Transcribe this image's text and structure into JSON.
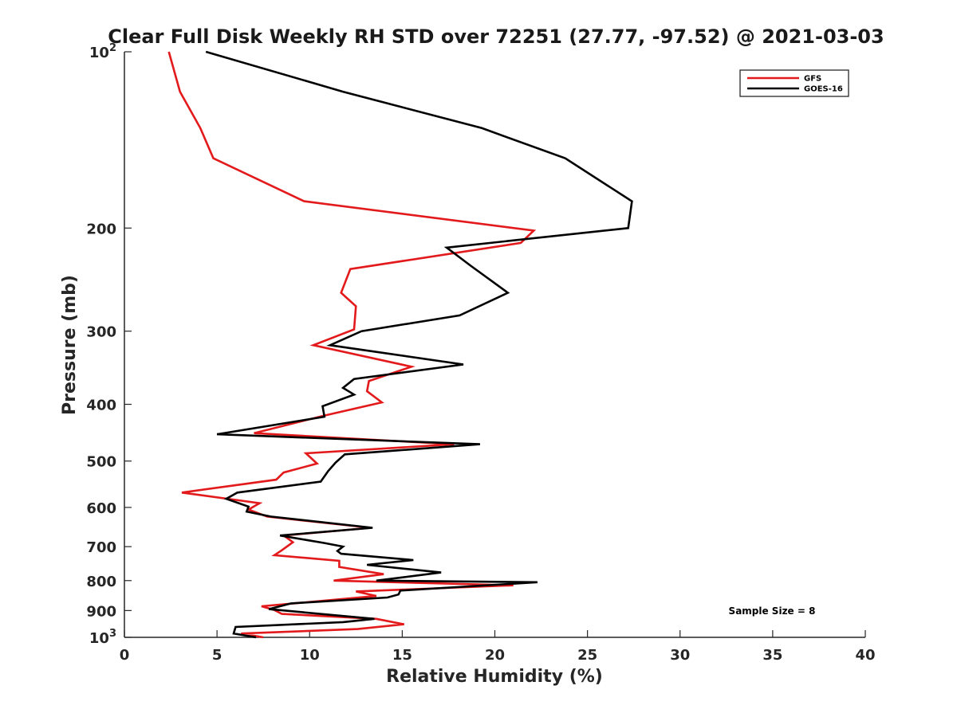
{
  "chart_data": {
    "type": "line",
    "title": "Clear Full Disk Weekly RH STD over 72251 (27.77, -97.52) @ 2021-03-03",
    "xlabel": "Relative Humidity (%)",
    "ylabel": "Pressure (mb)",
    "xlim": [
      0,
      40
    ],
    "ylim": [
      100,
      1000
    ],
    "y_scale": "log",
    "y_reversed": true,
    "grid": false,
    "legend_position": "top-right",
    "x_ticks": [
      0,
      5,
      10,
      15,
      20,
      25,
      30,
      35,
      40
    ],
    "x_tick_labels": [
      "0",
      "5",
      "10",
      "15",
      "20",
      "25",
      "30",
      "35",
      "40"
    ],
    "y_ticks": [
      100,
      200,
      300,
      400,
      500,
      600,
      700,
      800,
      900,
      1000
    ],
    "y_tick_labels": [
      {
        "base": "10",
        "exp": "2"
      },
      {
        "base": "200",
        "exp": ""
      },
      {
        "base": "300",
        "exp": ""
      },
      {
        "base": "400",
        "exp": ""
      },
      {
        "base": "500",
        "exp": ""
      },
      {
        "base": "600",
        "exp": ""
      },
      {
        "base": "700",
        "exp": ""
      },
      {
        "base": "800",
        "exp": ""
      },
      {
        "base": "900",
        "exp": ""
      },
      {
        "base": "10",
        "exp": "3"
      }
    ],
    "series": [
      {
        "name": "GFS",
        "color": "#e31a1c",
        "points": [
          [
            2.4,
            100
          ],
          [
            3.0,
            117
          ],
          [
            4.1,
            135
          ],
          [
            4.8,
            152
          ],
          [
            9.7,
            180
          ],
          [
            22.1,
            202
          ],
          [
            21.4,
            212
          ],
          [
            12.2,
            235
          ],
          [
            11.7,
            258
          ],
          [
            12.5,
            272
          ],
          [
            12.4,
            298
          ],
          [
            10.2,
            317
          ],
          [
            15.5,
            345
          ],
          [
            13.2,
            365
          ],
          [
            13.1,
            380
          ],
          [
            13.9,
            397
          ],
          [
            10.8,
            418
          ],
          [
            7.0,
            448
          ],
          [
            17.8,
            468
          ],
          [
            9.8,
            485
          ],
          [
            10.4,
            505
          ],
          [
            8.6,
            523
          ],
          [
            8.2,
            538
          ],
          [
            3.1,
            566
          ],
          [
            7.3,
            590
          ],
          [
            6.7,
            605
          ],
          [
            7.7,
            622
          ],
          [
            13.3,
            650
          ],
          [
            8.6,
            670
          ],
          [
            9.1,
            688
          ],
          [
            8.5,
            710
          ],
          [
            8.1,
            724
          ],
          [
            11.6,
            740
          ],
          [
            11.6,
            758
          ],
          [
            14.0,
            780
          ],
          [
            11.3,
            800
          ],
          [
            21.0,
            815
          ],
          [
            12.5,
            835
          ],
          [
            13.6,
            850
          ],
          [
            7.4,
            885
          ],
          [
            8.1,
            898
          ],
          [
            8.5,
            912
          ],
          [
            13.6,
            930
          ],
          [
            15.1,
            950
          ],
          [
            12.6,
            968
          ],
          [
            6.3,
            985
          ],
          [
            7.5,
            1000
          ]
        ]
      },
      {
        "name": "GOES-16",
        "color": "#000000",
        "points": [
          [
            4.4,
            100
          ],
          [
            11.8,
            117
          ],
          [
            19.3,
            135
          ],
          [
            23.8,
            152
          ],
          [
            27.4,
            180
          ],
          [
            27.2,
            200
          ],
          [
            17.4,
            216
          ],
          [
            18.7,
            232
          ],
          [
            20.7,
            258
          ],
          [
            18.1,
            282
          ],
          [
            12.8,
            300
          ],
          [
            11.1,
            317
          ],
          [
            18.3,
            342
          ],
          [
            12.4,
            362
          ],
          [
            11.8,
            375
          ],
          [
            12.4,
            385
          ],
          [
            10.7,
            403
          ],
          [
            10.8,
            420
          ],
          [
            5.0,
            450
          ],
          [
            19.2,
            468
          ],
          [
            11.9,
            487
          ],
          [
            11.4,
            503
          ],
          [
            11.0,
            520
          ],
          [
            10.6,
            542
          ],
          [
            6.1,
            566
          ],
          [
            5.5,
            580
          ],
          [
            6.7,
            598
          ],
          [
            6.6,
            610
          ],
          [
            7.9,
            622
          ],
          [
            13.4,
            650
          ],
          [
            8.4,
            670
          ],
          [
            10.8,
            690
          ],
          [
            11.8,
            700
          ],
          [
            11.5,
            712
          ],
          [
            11.7,
            720
          ],
          [
            15.6,
            738
          ],
          [
            13.1,
            752
          ],
          [
            17.1,
            775
          ],
          [
            13.6,
            800
          ],
          [
            22.3,
            805
          ],
          [
            14.9,
            832
          ],
          [
            14.8,
            845
          ],
          [
            14.2,
            855
          ],
          [
            9.0,
            875
          ],
          [
            7.8,
            895
          ],
          [
            13.5,
            930
          ],
          [
            11.8,
            942
          ],
          [
            6.0,
            960
          ],
          [
            5.9,
            985
          ],
          [
            7.1,
            1000
          ]
        ]
      }
    ],
    "annotation": "Sample Size = 8"
  }
}
